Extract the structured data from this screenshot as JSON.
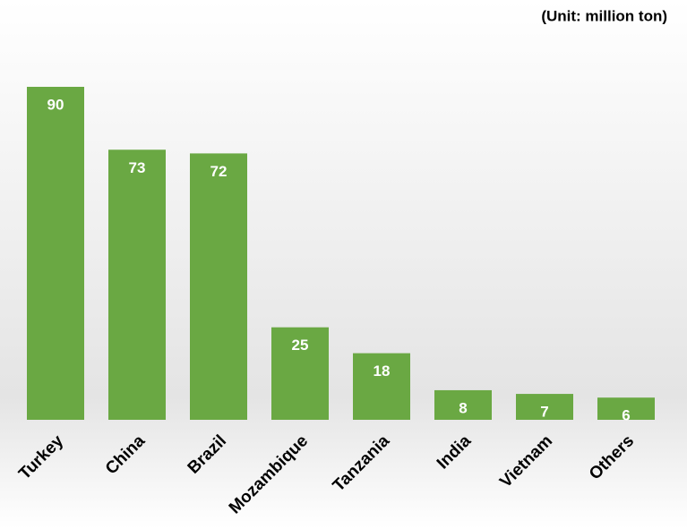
{
  "chart_data": {
    "type": "bar",
    "subtitle": "(Unit: million ton)",
    "categories": [
      "Turkey",
      "China",
      "Brazil",
      "Mozambique",
      "Tanzania",
      "India",
      "Vietnam",
      "Others"
    ],
    "values": [
      90,
      73,
      72,
      25,
      18,
      8,
      7,
      6
    ],
    "color": "#6aa843"
  }
}
